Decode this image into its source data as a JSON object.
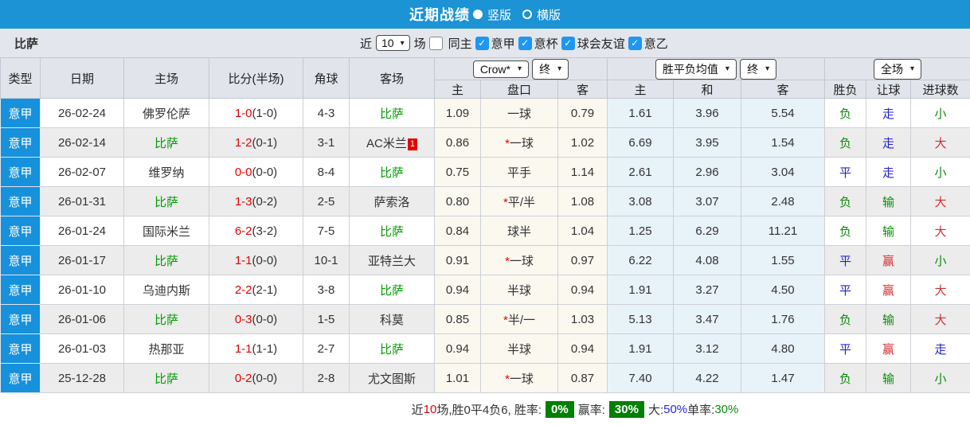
{
  "colors": {
    "titlebar_blue": "#1b93d4",
    "league_cell_blue": "#1791dc",
    "checkbox_blue": "#1e97f3",
    "odds_cream": "#fbf8f0",
    "avg_lightblue": "#e8f2f9",
    "win_green": "#0a8a0a",
    "draw_blue": "#2323cc",
    "big_red": "#d32f2f",
    "score_red": "#e60000",
    "team_green": "#009b00",
    "badge_green": "#008000"
  },
  "titlebar": {
    "title": "近期战绩",
    "vertical": {
      "label": "竖版",
      "selected": true
    },
    "horizontal": {
      "label": "横版",
      "selected": false
    }
  },
  "filterbar": {
    "team": "比萨",
    "near_label": "近",
    "matches_value": "10",
    "matches_suffix": "场",
    "checkboxes": [
      {
        "label": "同主",
        "checked": false
      },
      {
        "label": "意甲",
        "checked": true
      },
      {
        "label": "意杯",
        "checked": true
      },
      {
        "label": "球会友谊",
        "checked": true
      },
      {
        "label": "意乙",
        "checked": true
      }
    ]
  },
  "table": {
    "headers": {
      "base": [
        "类型",
        "日期",
        "主场",
        "比分(半场)",
        "角球",
        "客场"
      ],
      "odds_group": {
        "company": "Crow*",
        "stage": "终",
        "cols": [
          "主",
          "盘口",
          "客"
        ]
      },
      "avg_group": {
        "name": "胜平负均值",
        "stage": "终",
        "cols": [
          "主",
          "和",
          "客"
        ]
      },
      "scope_group": {
        "name": "全场",
        "cols": [
          "胜负",
          "让球",
          "进球数"
        ]
      }
    },
    "rows": [
      {
        "league": "意甲",
        "date": "26-02-24",
        "home": {
          "name": "佛罗伦萨",
          "highlight": false
        },
        "score": {
          "full": "1-0",
          "half": "(1-0)"
        },
        "corner": "4-3",
        "away": {
          "name": "比萨",
          "highlight": true
        },
        "odds": {
          "home": "1.09",
          "handicap": "一球",
          "away": "0.79"
        },
        "avg": {
          "home": "1.61",
          "draw": "3.96",
          "away": "5.54"
        },
        "outcome": {
          "text": "负",
          "color": "green"
        },
        "handicap_outcome": {
          "text": "走",
          "color": "blue"
        },
        "goals_outcome": {
          "text": "小",
          "color": "green"
        }
      },
      {
        "league": "意甲",
        "date": "26-02-14",
        "home": {
          "name": "比萨",
          "highlight": true
        },
        "score": {
          "full": "1-2",
          "half": "(0-1)"
        },
        "corner": "3-1",
        "away": {
          "name": "AC米兰",
          "highlight": false,
          "badge": "1"
        },
        "odds": {
          "home": "0.86",
          "handicap": "*一球",
          "away": "1.02"
        },
        "avg": {
          "home": "6.69",
          "draw": "3.95",
          "away": "1.54"
        },
        "outcome": {
          "text": "负",
          "color": "green"
        },
        "handicap_outcome": {
          "text": "走",
          "color": "blue"
        },
        "goals_outcome": {
          "text": "大",
          "color": "red"
        }
      },
      {
        "league": "意甲",
        "date": "26-02-07",
        "home": {
          "name": "维罗纳",
          "highlight": false
        },
        "score": {
          "full": "0-0",
          "half": "(0-0)"
        },
        "corner": "8-4",
        "away": {
          "name": "比萨",
          "highlight": true
        },
        "odds": {
          "home": "0.75",
          "handicap": "平手",
          "away": "1.14"
        },
        "avg": {
          "home": "2.61",
          "draw": "2.96",
          "away": "3.04"
        },
        "outcome": {
          "text": "平",
          "color": "blue"
        },
        "handicap_outcome": {
          "text": "走",
          "color": "blue"
        },
        "goals_outcome": {
          "text": "小",
          "color": "green"
        }
      },
      {
        "league": "意甲",
        "date": "26-01-31",
        "home": {
          "name": "比萨",
          "highlight": true
        },
        "score": {
          "full": "1-3",
          "half": "(0-2)"
        },
        "corner": "2-5",
        "away": {
          "name": "萨索洛",
          "highlight": false
        },
        "odds": {
          "home": "0.80",
          "handicap": "*平/半",
          "away": "1.08"
        },
        "avg": {
          "home": "3.08",
          "draw": "3.07",
          "away": "2.48"
        },
        "outcome": {
          "text": "负",
          "color": "green"
        },
        "handicap_outcome": {
          "text": "输",
          "color": "green"
        },
        "goals_outcome": {
          "text": "大",
          "color": "red"
        }
      },
      {
        "league": "意甲",
        "date": "26-01-24",
        "home": {
          "name": "国际米兰",
          "highlight": false
        },
        "score": {
          "full": "6-2",
          "half": "(3-2)"
        },
        "corner": "7-5",
        "away": {
          "name": "比萨",
          "highlight": true
        },
        "odds": {
          "home": "0.84",
          "handicap": "球半",
          "away": "1.04"
        },
        "avg": {
          "home": "1.25",
          "draw": "6.29",
          "away": "11.21"
        },
        "outcome": {
          "text": "负",
          "color": "green"
        },
        "handicap_outcome": {
          "text": "输",
          "color": "green"
        },
        "goals_outcome": {
          "text": "大",
          "color": "red"
        }
      },
      {
        "league": "意甲",
        "date": "26-01-17",
        "home": {
          "name": "比萨",
          "highlight": true
        },
        "score": {
          "full": "1-1",
          "half": "(0-0)"
        },
        "corner": "10-1",
        "away": {
          "name": "亚特兰大",
          "highlight": false
        },
        "odds": {
          "home": "0.91",
          "handicap": "*一球",
          "away": "0.97"
        },
        "avg": {
          "home": "6.22",
          "draw": "4.08",
          "away": "1.55"
        },
        "outcome": {
          "text": "平",
          "color": "blue"
        },
        "handicap_outcome": {
          "text": "赢",
          "color": "red"
        },
        "goals_outcome": {
          "text": "小",
          "color": "green"
        }
      },
      {
        "league": "意甲",
        "date": "26-01-10",
        "home": {
          "name": "乌迪内斯",
          "highlight": false
        },
        "score": {
          "full": "2-2",
          "half": "(2-1)"
        },
        "corner": "3-8",
        "away": {
          "name": "比萨",
          "highlight": true
        },
        "odds": {
          "home": "0.94",
          "handicap": "半球",
          "away": "0.94"
        },
        "avg": {
          "home": "1.91",
          "draw": "3.27",
          "away": "4.50"
        },
        "outcome": {
          "text": "平",
          "color": "blue"
        },
        "handicap_outcome": {
          "text": "赢",
          "color": "red"
        },
        "goals_outcome": {
          "text": "大",
          "color": "red"
        }
      },
      {
        "league": "意甲",
        "date": "26-01-06",
        "home": {
          "name": "比萨",
          "highlight": true
        },
        "score": {
          "full": "0-3",
          "half": "(0-0)"
        },
        "corner": "1-5",
        "away": {
          "name": "科莫",
          "highlight": false
        },
        "odds": {
          "home": "0.85",
          "handicap": "*半/一",
          "away": "1.03"
        },
        "avg": {
          "home": "5.13",
          "draw": "3.47",
          "away": "1.76"
        },
        "outcome": {
          "text": "负",
          "color": "green"
        },
        "handicap_outcome": {
          "text": "输",
          "color": "green"
        },
        "goals_outcome": {
          "text": "大",
          "color": "red"
        }
      },
      {
        "league": "意甲",
        "date": "26-01-03",
        "home": {
          "name": "热那亚",
          "highlight": false
        },
        "score": {
          "full": "1-1",
          "half": "(1-1)"
        },
        "corner": "2-7",
        "away": {
          "name": "比萨",
          "highlight": true
        },
        "odds": {
          "home": "0.94",
          "handicap": "半球",
          "away": "0.94"
        },
        "avg": {
          "home": "1.91",
          "draw": "3.12",
          "away": "4.80"
        },
        "outcome": {
          "text": "平",
          "color": "blue"
        },
        "handicap_outcome": {
          "text": "赢",
          "color": "red"
        },
        "goals_outcome": {
          "text": "走",
          "color": "blue"
        }
      },
      {
        "league": "意甲",
        "date": "25-12-28",
        "home": {
          "name": "比萨",
          "highlight": true
        },
        "score": {
          "full": "0-2",
          "half": "(0-0)"
        },
        "corner": "2-8",
        "away": {
          "name": "尤文图斯",
          "highlight": false
        },
        "odds": {
          "home": "1.01",
          "handicap": "*一球",
          "away": "0.87"
        },
        "avg": {
          "home": "7.40",
          "draw": "4.22",
          "away": "1.47"
        },
        "outcome": {
          "text": "负",
          "color": "green"
        },
        "handicap_outcome": {
          "text": "输",
          "color": "green"
        },
        "goals_outcome": {
          "text": "小",
          "color": "green"
        }
      }
    ]
  },
  "footer": {
    "segments": [
      {
        "text": "近",
        "style": "plain"
      },
      {
        "text": "10",
        "style": "red"
      },
      {
        "text": "场,胜0平4负6, 胜率:",
        "style": "plain"
      },
      {
        "text": "0%",
        "style": "badge"
      },
      {
        "text": "赢率:",
        "style": "plain"
      },
      {
        "text": "30%",
        "style": "badge"
      },
      {
        "text": "大:",
        "style": "plain"
      },
      {
        "text": "50%",
        "style": "blue"
      },
      {
        "text": " 单率:",
        "style": "plain"
      },
      {
        "text": "30%",
        "style": "green"
      }
    ]
  }
}
